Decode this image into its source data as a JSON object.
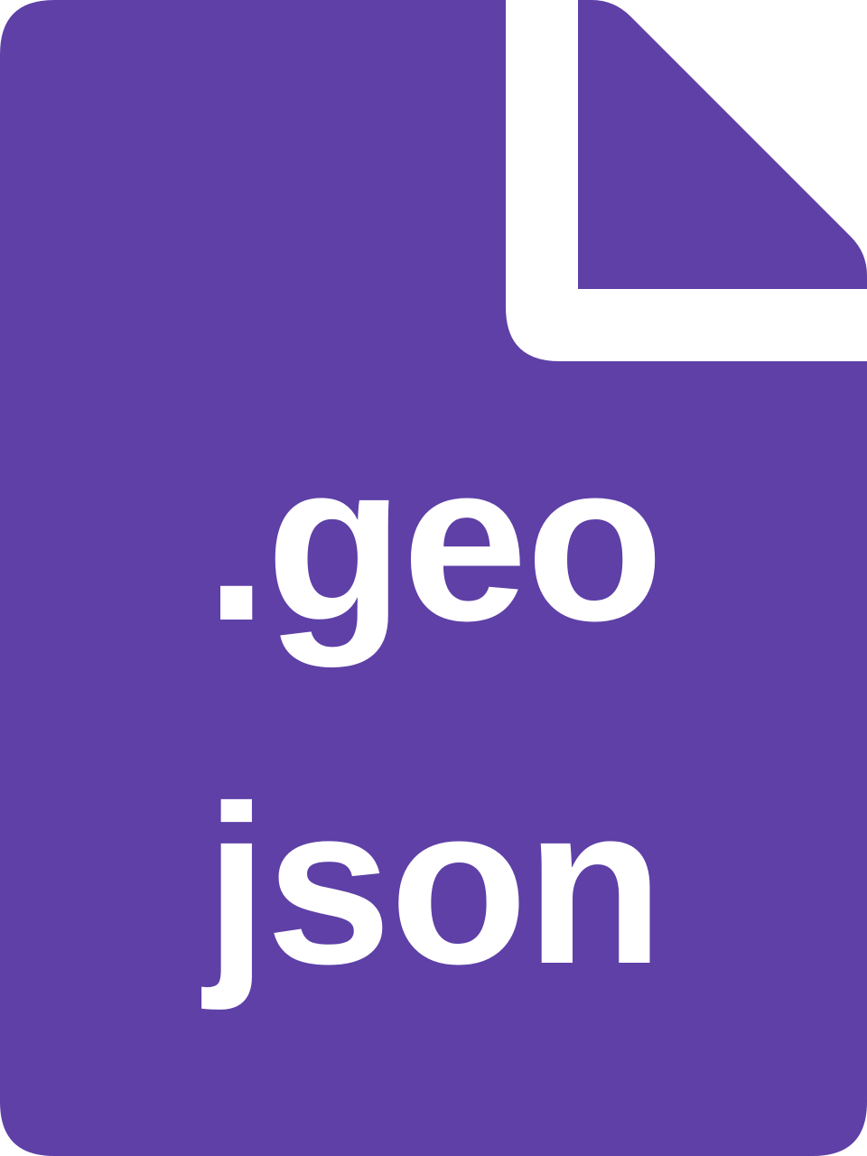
{
  "icon": {
    "name": "geojson-file-icon",
    "color": "#5e40a7",
    "fold_color": "#ffffff"
  },
  "extension": {
    "line1": ".geo",
    "line2": "json"
  }
}
